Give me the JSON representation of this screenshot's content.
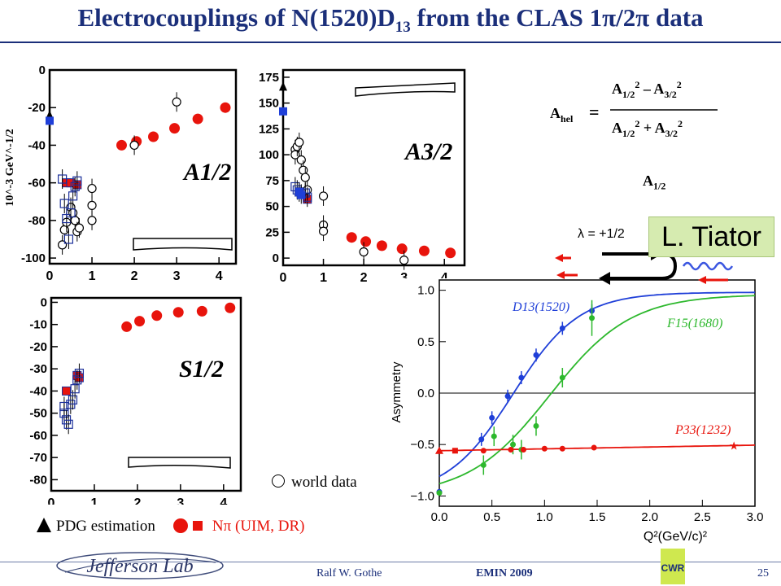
{
  "slide": {
    "title_main": "Electrocouplings  of N(1520)D",
    "title_sub": "13",
    "title_rest": " from the CLAS 1π/2π data",
    "footer_author": "Ralf  W. Gothe",
    "footer_conf": "EMIN 2009",
    "page_number": "25",
    "jlab_logo_text": "Jefferson Lab",
    "cwr_logo_text": "CWR",
    "credit": "L. Tiator",
    "legend_world": "world data",
    "legend_pdg": "PDG estimation",
    "legend_npi": "Nπ  (UIM, DR)",
    "formula_lhs": "A",
    "formula_lhs_sub": "hel",
    "a12_label": "A",
    "a12_label_sub": "1/2",
    "helicity_label": "λ  =  +1/2",
    "colors": {
      "title": "#1b2f7a",
      "red": "#e8140c",
      "blue": "#1f3fd8",
      "green": "#2db82d",
      "hollow_blue": "#1b2f9a"
    }
  },
  "chart_data": [
    {
      "id": "A12",
      "type": "scatter",
      "title": "A1/2",
      "ylabel": "10^-3 GeV^-1/2",
      "xlim": [
        0,
        4.4
      ],
      "ylim": [
        -103,
        0
      ],
      "xticks": [
        0,
        1,
        2,
        3,
        4
      ],
      "yticks": [
        0,
        -20,
        -40,
        -60,
        -80,
        -100
      ],
      "series": [
        {
          "marker": "red_circle",
          "points": [
            [
              1.7,
              -40
            ],
            [
              2.05,
              -38
            ],
            [
              2.45,
              -35.5
            ],
            [
              2.95,
              -31
            ],
            [
              3.5,
              -26
            ],
            [
              4.15,
              -20
            ]
          ]
        },
        {
          "marker": "red_square",
          "points": [
            [
              0.4,
              -60
            ],
            [
              0.5,
              -60
            ],
            [
              0.65,
              -61
            ]
          ]
        },
        {
          "marker": "hollow_circle",
          "points": [
            [
              0.3,
              -93
            ],
            [
              0.35,
              -85
            ],
            [
              0.4,
              -81
            ],
            [
              0.5,
              -73
            ],
            [
              0.55,
              -76
            ],
            [
              0.6,
              -80
            ],
            [
              0.65,
              -86
            ],
            [
              0.7,
              -84
            ],
            [
              1.0,
              -63
            ],
            [
              1.0,
              -72
            ],
            [
              1.0,
              -80
            ],
            [
              2.0,
              -40
            ],
            [
              3.0,
              -17
            ]
          ]
        },
        {
          "marker": "hollow_blue_square",
          "points": [
            [
              0.3,
              -58
            ],
            [
              0.35,
              -71
            ],
            [
              0.4,
              -79
            ],
            [
              0.45,
              -90
            ],
            [
              0.5,
              -76
            ],
            [
              0.55,
              -67
            ],
            [
              0.6,
              -62
            ],
            [
              0.65,
              -59
            ]
          ]
        },
        {
          "marker": "pdg_triangle",
          "points": [
            [
              0,
              -24
            ]
          ]
        },
        {
          "marker": "blue_square",
          "points": [
            [
              0,
              -27
            ]
          ]
        }
      ]
    },
    {
      "id": "A32",
      "type": "scatter",
      "title": "A3/2",
      "xlim": [
        0,
        4.5
      ],
      "ylim": [
        -7,
        182
      ],
      "xticks": [
        0,
        1,
        2,
        3,
        4
      ],
      "yticks": [
        175,
        150,
        125,
        100,
        75,
        50,
        25,
        0
      ],
      "series": [
        {
          "marker": "red_circle",
          "points": [
            [
              1.7,
              20
            ],
            [
              2.05,
              16
            ],
            [
              2.45,
              12
            ],
            [
              2.95,
              9
            ],
            [
              3.5,
              7
            ],
            [
              4.15,
              5
            ]
          ]
        },
        {
          "marker": "red_square",
          "points": [
            [
              0.5,
              62
            ],
            [
              0.6,
              57
            ]
          ]
        },
        {
          "marker": "hollow_circle",
          "points": [
            [
              0.3,
              105
            ],
            [
              0.3,
              100
            ],
            [
              0.35,
              108
            ],
            [
              0.4,
              112
            ],
            [
              0.45,
              95
            ],
            [
              0.5,
              85
            ],
            [
              0.55,
              78
            ],
            [
              0.6,
              66
            ],
            [
              1.0,
              60
            ],
            [
              1.0,
              32
            ],
            [
              1.0,
              26
            ],
            [
              2.0,
              6
            ],
            [
              3.0,
              -2
            ]
          ]
        },
        {
          "marker": "hollow_blue_square",
          "points": [
            [
              0.3,
              69
            ],
            [
              0.35,
              66
            ],
            [
              0.4,
              64
            ],
            [
              0.45,
              62
            ],
            [
              0.55,
              63
            ],
            [
              0.6,
              59
            ]
          ]
        },
        {
          "marker": "blue_square",
          "points": [
            [
              0.4,
              64
            ],
            [
              0.45,
              61
            ]
          ]
        },
        {
          "marker": "pdg_triangle",
          "points": [
            [
              0,
              166
            ]
          ]
        },
        {
          "marker": "blue_square",
          "points": [
            [
              0,
              142
            ]
          ]
        }
      ]
    },
    {
      "id": "S12",
      "type": "scatter",
      "title": "S1/2",
      "xlim": [
        0,
        4.4
      ],
      "ylim": [
        -85,
        2
      ],
      "xticks": [
        0,
        1,
        2,
        3,
        4
      ],
      "yticks": [
        0,
        -10,
        -20,
        -30,
        -40,
        -50,
        -60,
        -70,
        -80
      ],
      "series": [
        {
          "marker": "red_circle",
          "points": [
            [
              1.75,
              -11
            ],
            [
              2.05,
              -8.5
            ],
            [
              2.45,
              -6
            ],
            [
              2.95,
              -4.5
            ],
            [
              3.5,
              -4
            ],
            [
              4.15,
              -2.5
            ]
          ]
        },
        {
          "marker": "red_square",
          "points": [
            [
              0.35,
              -40
            ],
            [
              0.6,
              -33
            ],
            [
              0.65,
              -34
            ]
          ]
        },
        {
          "marker": "hollow_blue_square",
          "points": [
            [
              0.3,
              -47
            ],
            [
              0.3,
              -50
            ],
            [
              0.35,
              -53
            ],
            [
              0.4,
              -55
            ],
            [
              0.45,
              -46
            ],
            [
              0.5,
              -44
            ],
            [
              0.55,
              -39
            ],
            [
              0.6,
              -35
            ],
            [
              0.65,
              -32
            ]
          ]
        }
      ]
    },
    {
      "id": "Asymmetry",
      "type": "line",
      "xlabel": "Q²(GeV/c)²",
      "ylabel": "Asymmetry",
      "xlim": [
        0,
        3.0
      ],
      "ylim": [
        -1.1,
        1.1
      ],
      "xticks": [
        0.0,
        0.5,
        1.0,
        1.5,
        2.0,
        2.5,
        3.0
      ],
      "yticks": [
        1.0,
        0.5,
        0.0,
        -0.5,
        -1.0
      ],
      "series": [
        {
          "name": "D13(1520)",
          "color": "#1f3fd8",
          "points": [
            [
              0.0,
              -0.96
            ],
            [
              0.4,
              -0.45
            ],
            [
              0.5,
              -0.24
            ],
            [
              0.65,
              -0.03
            ],
            [
              0.78,
              0.15
            ],
            [
              0.92,
              0.37
            ],
            [
              1.17,
              0.63
            ],
            [
              1.45,
              0.8
            ]
          ]
        },
        {
          "name": "F15(1680)",
          "color": "#2db82d",
          "points": [
            [
              0.0,
              -0.97
            ],
            [
              0.42,
              -0.7
            ],
            [
              0.52,
              -0.42
            ],
            [
              0.7,
              -0.5
            ],
            [
              0.78,
              -0.55
            ],
            [
              0.92,
              -0.32
            ],
            [
              1.17,
              0.15
            ],
            [
              1.45,
              0.73
            ]
          ]
        },
        {
          "name": "P33(1232)",
          "color": "#e8140c",
          "points": [
            [
              0.0,
              -0.56
            ],
            [
              0.15,
              -0.56
            ],
            [
              0.42,
              -0.56
            ],
            [
              0.68,
              -0.55
            ],
            [
              0.8,
              -0.55
            ],
            [
              1.0,
              -0.54
            ],
            [
              1.17,
              -0.54
            ],
            [
              1.47,
              -0.53
            ],
            [
              2.8,
              -0.51
            ]
          ]
        }
      ]
    }
  ]
}
